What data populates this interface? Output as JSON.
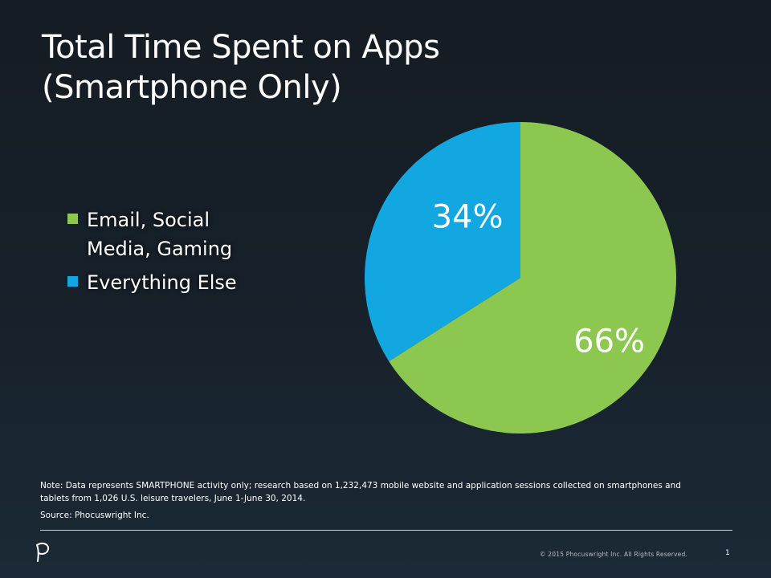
{
  "slide": {
    "title_line1": "Total Time Spent on Apps",
    "title_line2": "(Smartphone Only)",
    "note": "Note: Data represents SMARTPHONE activity only; research based on 1,232,473 mobile website and application sessions collected on smartphones and tablets from 1,026 U.S. leisure travelers, June 1-June 30, 2014.",
    "source": "Source: Phocuswright Inc.",
    "copyright": "© 2015 Phocuswright Inc. All Rights Reserved.",
    "page_number": "1",
    "logo_icon": "phocuswright-p-logo-icon"
  },
  "chart_data": {
    "type": "pie",
    "title": "Total Time Spent on Apps (Smartphone Only)",
    "legend_position": "left",
    "slices": [
      {
        "name": "Email, Social Media, Gaming",
        "value": 66,
        "label": "66%",
        "color": "#8cc84f"
      },
      {
        "name": "Everything Else",
        "value": 34,
        "label": "34%",
        "color": "#12a7e0"
      }
    ]
  }
}
